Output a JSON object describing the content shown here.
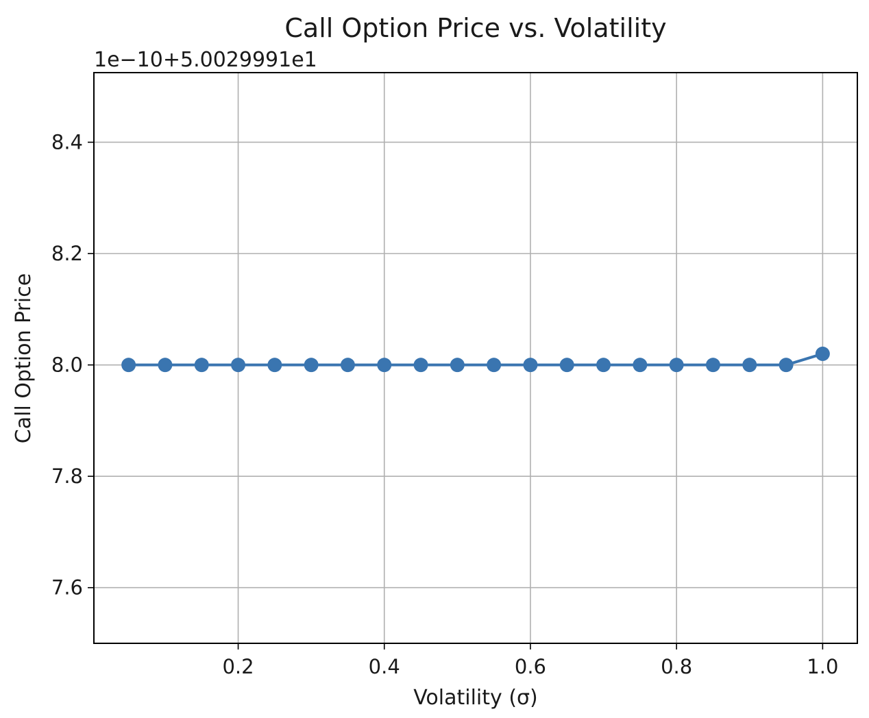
{
  "chart_data": {
    "type": "line",
    "title": "Call Option Price vs. Volatility",
    "xlabel": "Volatility (σ)",
    "ylabel": "Call Option Price",
    "offset_label": "1e−10+5.0029991e1",
    "xlim": [
      0.0025,
      1.0475
    ],
    "ylim": [
      7.5,
      8.525
    ],
    "x_ticks": [
      0.2,
      0.4,
      0.6,
      0.8,
      1.0
    ],
    "x_tick_labels": [
      "0.2",
      "0.4",
      "0.6",
      "0.8",
      "1.0"
    ],
    "y_ticks": [
      7.6,
      7.8,
      8.0,
      8.2,
      8.4
    ],
    "y_tick_labels": [
      "7.6",
      "7.8",
      "8.0",
      "8.2",
      "8.4"
    ],
    "grid": true,
    "color": "#3a75b0",
    "series": [
      {
        "name": "Call Option Price",
        "marker": "circle",
        "x": [
          0.05,
          0.1,
          0.15,
          0.2,
          0.25,
          0.3,
          0.35,
          0.4,
          0.45,
          0.5,
          0.55,
          0.6,
          0.65,
          0.7,
          0.75,
          0.8,
          0.85,
          0.9,
          0.95,
          1.0
        ],
        "y": [
          8.0,
          8.0,
          8.0,
          8.0,
          8.0,
          8.0,
          8.0,
          8.0,
          8.0,
          8.0,
          8.0,
          8.0,
          8.0,
          8.0,
          8.0,
          8.0,
          8.0,
          8.0,
          8.0,
          8.02
        ]
      }
    ]
  }
}
